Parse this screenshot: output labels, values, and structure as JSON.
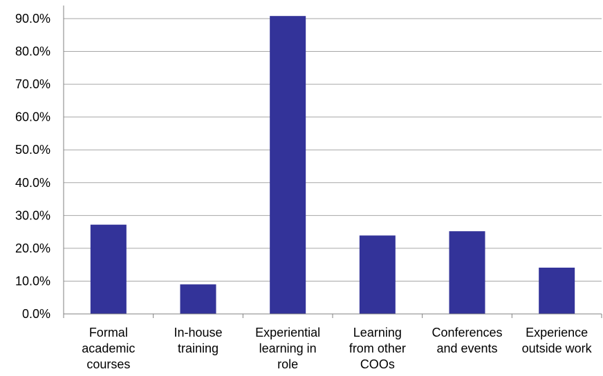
{
  "chart_data": {
    "type": "bar",
    "categories": [
      "Formal academic courses",
      "In-house training",
      "Experiential learning in role",
      "Learning from other COOs",
      "Conferences and events",
      "Experience outside work"
    ],
    "category_label_lines": [
      [
        "Formal",
        "academic",
        "courses"
      ],
      [
        "In-house",
        "training"
      ],
      [
        "Experiential",
        "learning in",
        "role"
      ],
      [
        "Learning",
        "from other",
        "COOs"
      ],
      [
        "Conferences",
        "and events"
      ],
      [
        "Experience",
        "outside work"
      ]
    ],
    "values": [
      27.2,
      9.0,
      90.8,
      23.9,
      25.2,
      14.1
    ],
    "ylim": [
      0,
      90
    ],
    "yticks": [
      "0.0%",
      "10.0%",
      "20.0%",
      "30.0%",
      "40.0%",
      "50.0%",
      "60.0%",
      "70.0%",
      "80.0%",
      "90.0%"
    ],
    "grid": true,
    "bar_color": "#333399",
    "title": "",
    "xlabel": "",
    "ylabel": ""
  }
}
